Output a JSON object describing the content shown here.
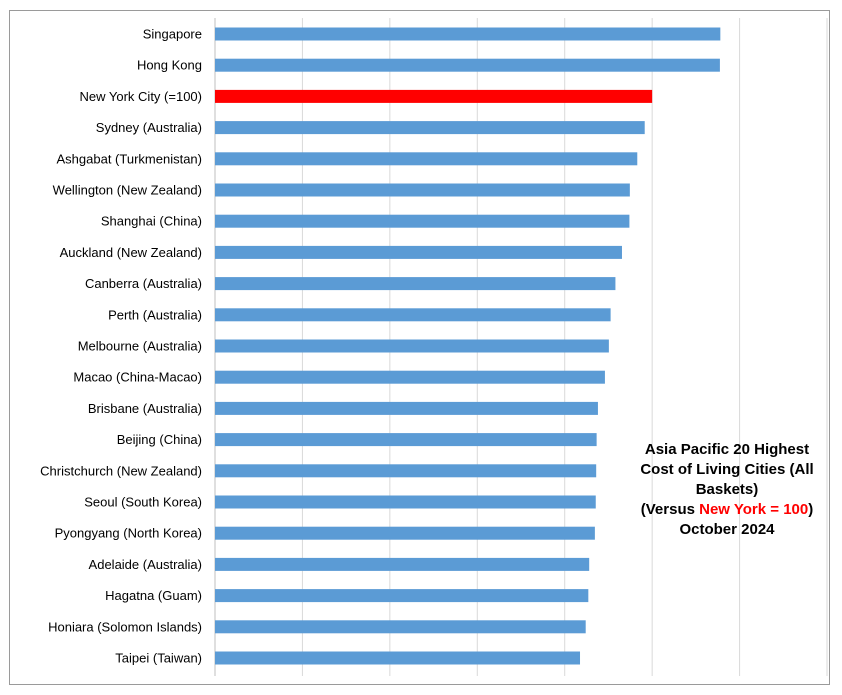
{
  "chart_data": {
    "type": "bar",
    "orientation": "horizontal",
    "title": {
      "line1": "Asia Pacific 20 Highest",
      "line2": "Cost of Living Cities (All",
      "line3": "Baskets)",
      "line4_pre": "(Versus ",
      "line4_highlight": "New York = 100",
      "line4_post": ")",
      "line5": "October 2024"
    },
    "categories": [
      "Singapore",
      "Hong Kong",
      "New York City (=100)",
      "Sydney (Australia)",
      "Ashgabat (Turkmenistan)",
      "Wellington (New Zealand)",
      "Shanghai (China)",
      "Auckland (New Zealand)",
      "Canberra (Australia)",
      "Perth (Australia)",
      "Melbourne (Australia)",
      "Macao (China-Macao)",
      "Brisbane (Australia)",
      "Beijing (China)",
      "Christchurch (New Zealand)",
      "Seoul (South Korea)",
      "Pyongyang (North Korea)",
      "Adelaide (Australia)",
      "Hagatna (Guam)",
      "Honiara (Solomon Islands)",
      "Taipei (Taiwan)"
    ],
    "values": [
      115.6,
      115.5,
      100,
      98.3,
      96.6,
      94.9,
      94.8,
      93.1,
      91.6,
      90.5,
      90.1,
      89.2,
      87.6,
      87.3,
      87.2,
      87.1,
      86.9,
      85.6,
      85.4,
      84.8,
      83.5
    ],
    "highlight_index": 2,
    "xlim": [
      0,
      140
    ],
    "x_gridlines": [
      0,
      20,
      40,
      60,
      80,
      100,
      120,
      140
    ],
    "grid": true,
    "colors": {
      "bar": "#5b9bd5",
      "highlight": "#ff0000",
      "grid": "#d9d9d9",
      "axis": "#bfbfbf"
    }
  }
}
